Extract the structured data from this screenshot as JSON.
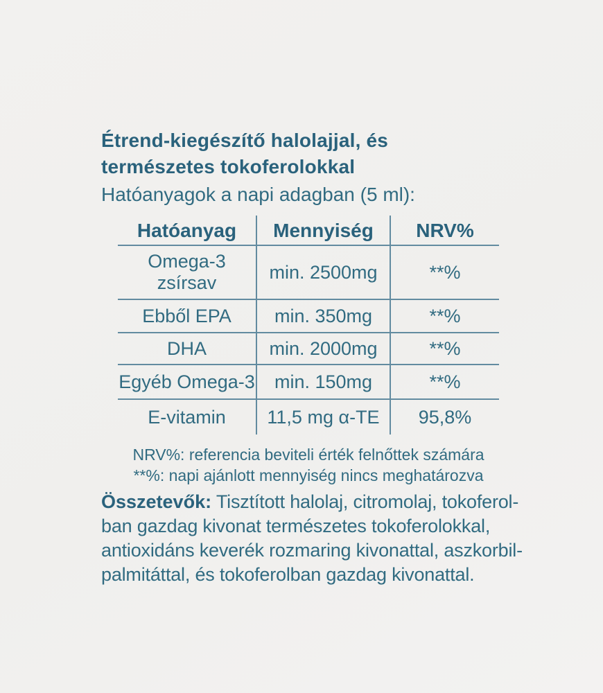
{
  "colors": {
    "text": "#316b81",
    "title_text": "#2a627c",
    "table_lines": "#628ba0",
    "background": "#f1f0ee"
  },
  "header": {
    "title_line1": "Étrend-kiegészítő halolajjal, és",
    "title_line2": "természetes tokoferolokkal",
    "subtitle": "Hatóanyagok a napi adagban (5 ml):"
  },
  "table": {
    "columns": [
      "Hatóanyag",
      "Mennyiség",
      "NRV%"
    ],
    "rows": [
      {
        "name": "Omega-3\nzsírsav",
        "amount": "min. 2500mg",
        "nrv": "**%"
      },
      {
        "name": "Ebből EPA",
        "amount": "min. 350mg",
        "nrv": "**%"
      },
      {
        "name": "DHA",
        "amount": "min. 2000mg",
        "nrv": "**%"
      },
      {
        "name": "Egyéb Omega-3",
        "amount": "min. 150mg",
        "nrv": "**%"
      },
      {
        "name": "E-vitamin",
        "amount": "11,5 mg α-TE",
        "nrv": "95,8%"
      }
    ]
  },
  "footnotes": {
    "nrv_note": "NRV%: referencia beviteli érték felnőttek számára",
    "asterisk_note": "**%: napi ajánlott mennyiség nincs meghatározva"
  },
  "ingredients": {
    "label": "Összetevők:",
    "line1": " Tisztított halolaj, citromolaj, tokoferol-",
    "line2": "ban gazdag kivonat természetes tokoferolokkal,",
    "line3": "antioxidáns keverék rozmaring kivonattal, aszkorbil-",
    "line4": "palmitáttal, és tokoferolban gazdag kivonattal."
  }
}
